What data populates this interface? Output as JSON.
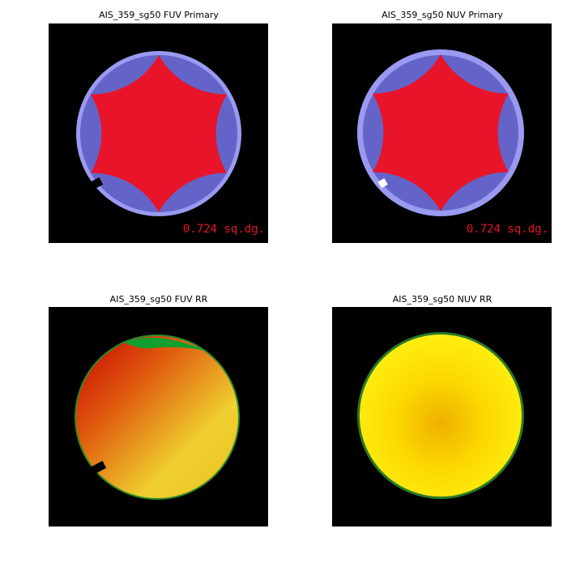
{
  "panels": [
    {
      "title": "AIS_359_sg50 FUV Primary",
      "area": "0.724 sq.dg."
    },
    {
      "title": "AIS_359_sg50 NUV Primary",
      "area": "0.724 sq.dg."
    },
    {
      "title": "AIS_359_sg50 FUV RR"
    },
    {
      "title": "AIS_359_sg50 NUV RR"
    }
  ]
}
